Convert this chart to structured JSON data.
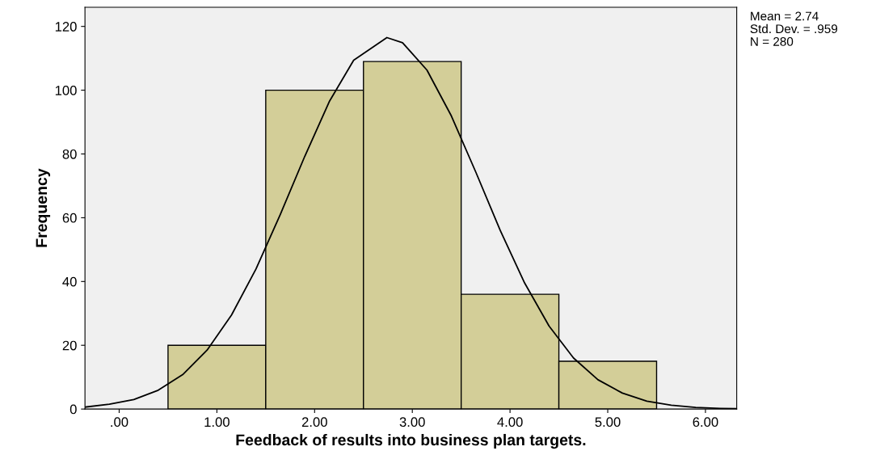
{
  "chart_data": {
    "type": "histogram",
    "xlabel": "Feedback of results into business plan targets.",
    "ylabel": "Frequency",
    "bins": [
      0.5,
      1.5,
      2.5,
      3.5,
      4.5,
      5.5
    ],
    "values": [
      20,
      100,
      109,
      36,
      15
    ],
    "color": "#d3ce98",
    "series": [
      {
        "type": "line",
        "color": "#000000",
        "x": [
          -0.35,
          -0.1,
          0.15,
          0.4,
          0.65,
          0.9,
          1.15,
          1.4,
          1.65,
          1.9,
          2.15,
          2.4,
          2.74,
          2.9,
          3.15,
          3.4,
          3.65,
          3.9,
          4.15,
          4.4,
          4.65,
          4.9,
          5.15,
          5.4,
          5.65,
          5.9,
          6.15,
          6.32
        ],
        "values": [
          0.6,
          1.5,
          3.0,
          5.9,
          10.8,
          18.5,
          29.5,
          43.9,
          61.1,
          79.3,
          96.4,
          109.4,
          116.5,
          114.9,
          106.3,
          91.9,
          74.3,
          56.0,
          39.5,
          26.0,
          16.0,
          9.2,
          5.0,
          2.5,
          1.2,
          0.5,
          0.2,
          0.1
        ]
      }
    ],
    "xlim": [
      -0.35,
      6.32
    ],
    "ylim": [
      0,
      126
    ],
    "xticks": [
      {
        "value": 0,
        "label": ".00"
      },
      {
        "value": 1,
        "label": "1.00"
      },
      {
        "value": 2,
        "label": "2.00"
      },
      {
        "value": 3,
        "label": "3.00"
      },
      {
        "value": 4,
        "label": "4.00"
      },
      {
        "value": 5,
        "label": "5.00"
      },
      {
        "value": 6,
        "label": "6.00"
      }
    ],
    "yticks": [
      0,
      20,
      40,
      60,
      80,
      100,
      120
    ],
    "annotations": [
      "Mean = 2.74",
      "Std. Dev. = .959",
      "N = 280"
    ],
    "grid": false,
    "legend": false
  }
}
